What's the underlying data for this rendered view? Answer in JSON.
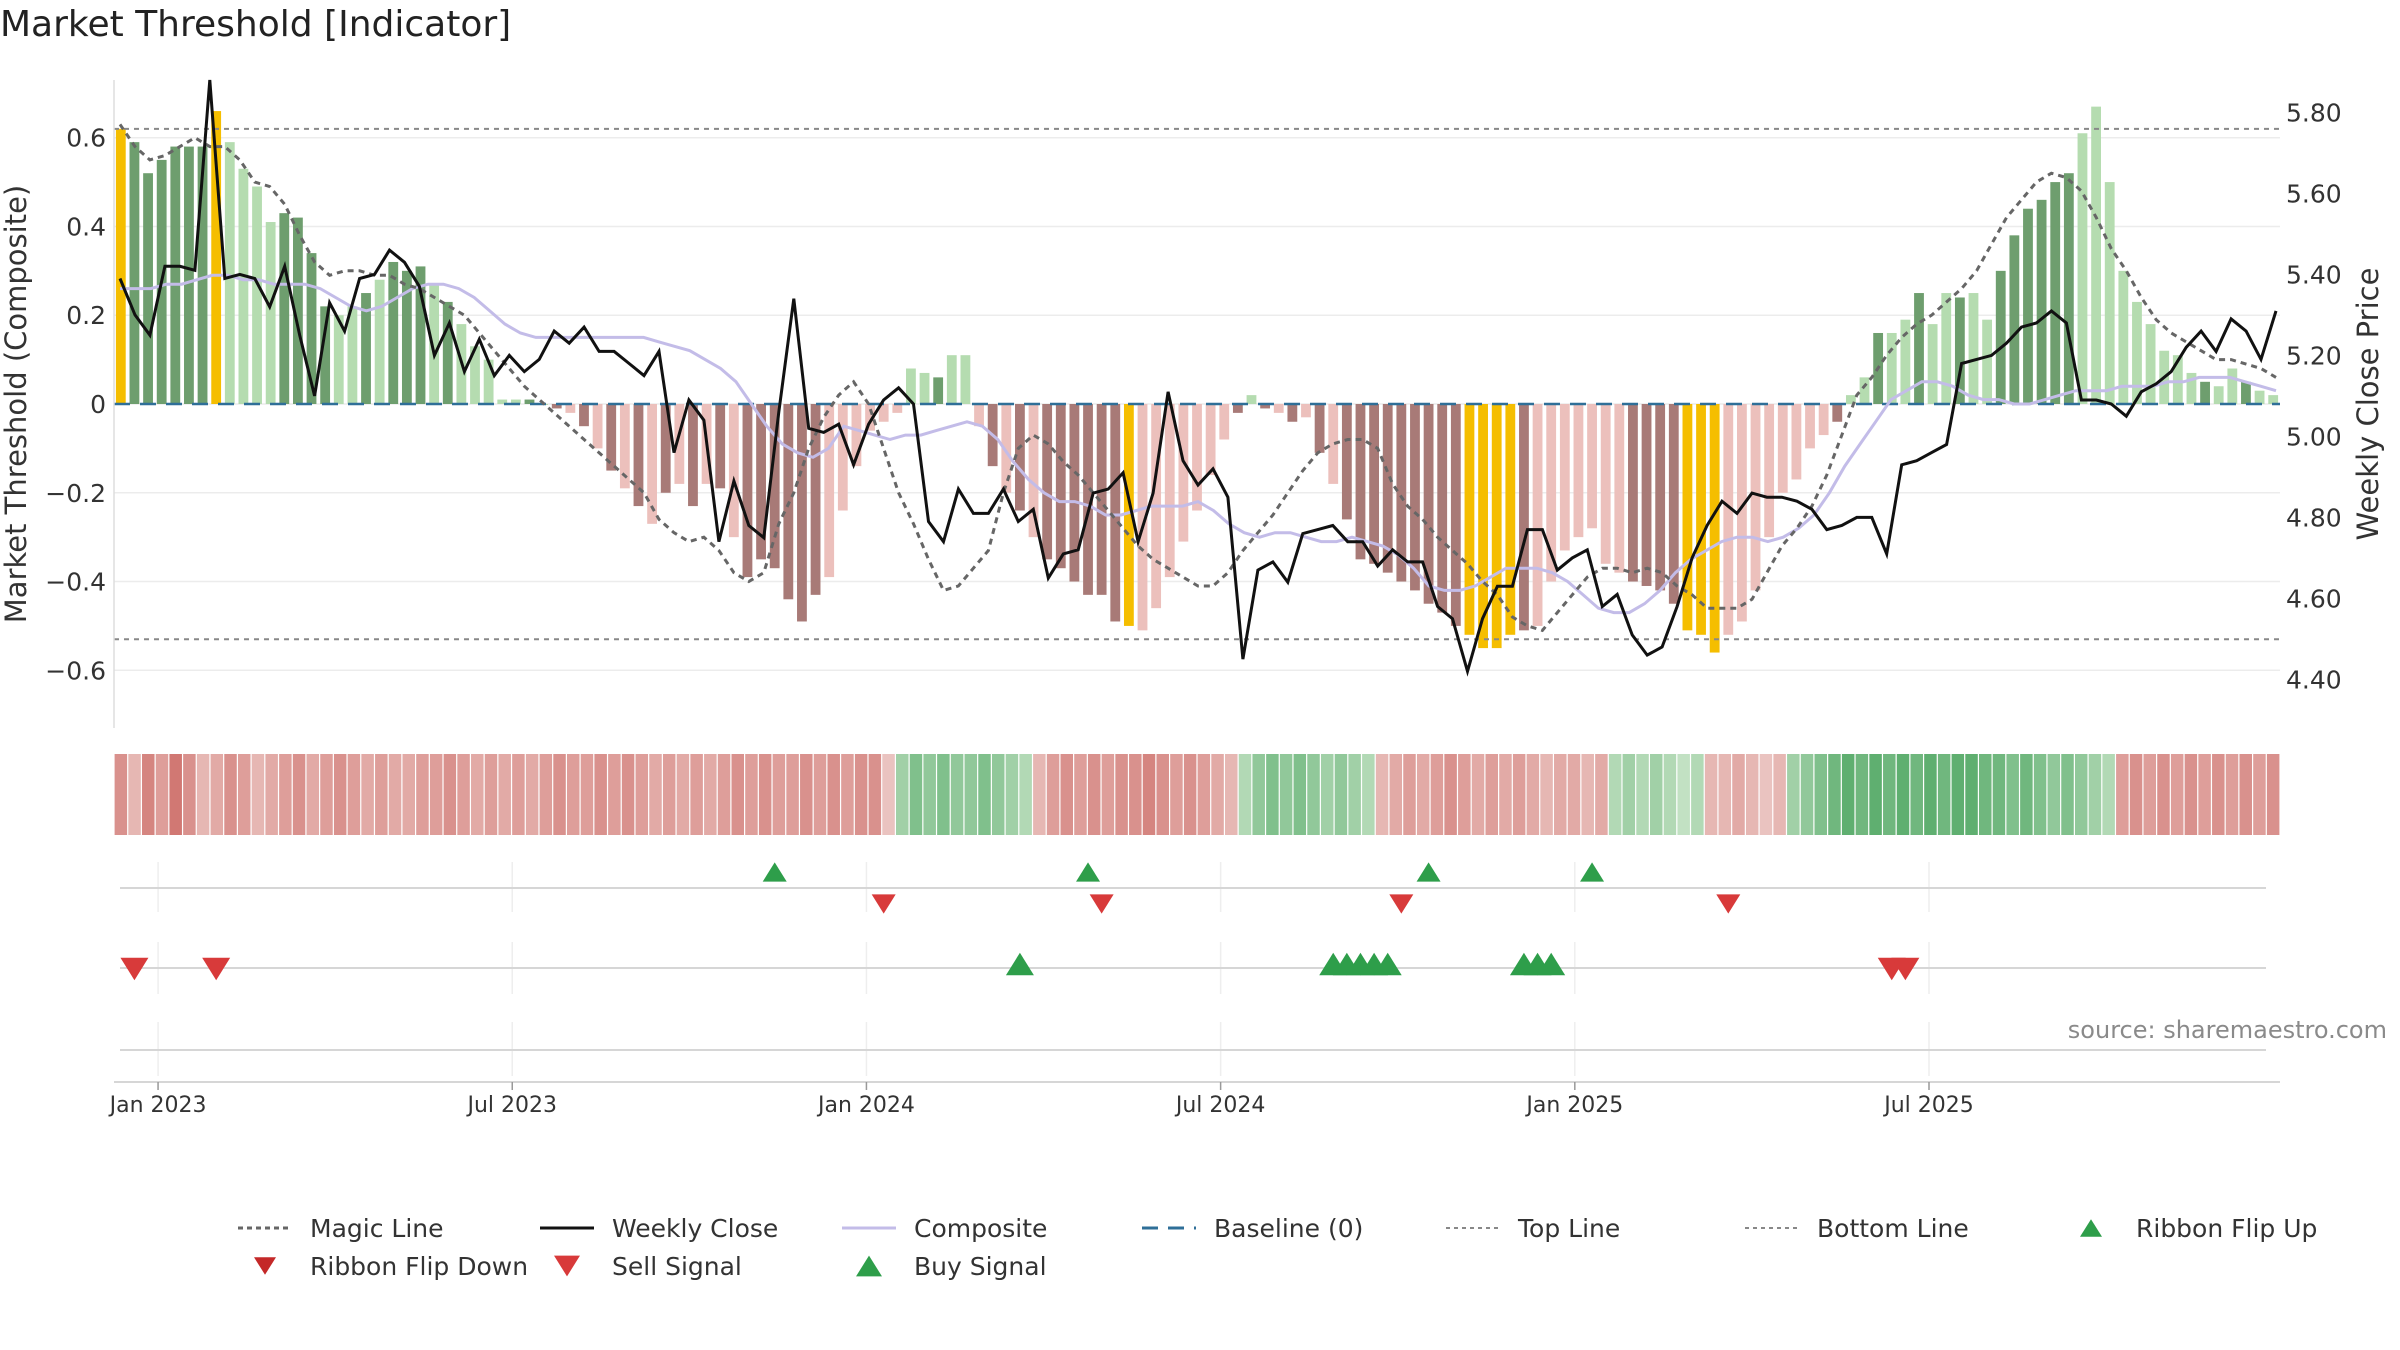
{
  "chart_data": {
    "type": "bar",
    "title": "Market Threshold [Indicator]",
    "source": "source: sharemaestro.com",
    "ylabel_left": "Market Threshold (Composite)",
    "ylabel_right": "Weekly Close Price",
    "ylim_left": [
      -0.73,
      0.73
    ],
    "ylim_right": [
      4.28,
      5.88
    ],
    "left_ticks": [
      {
        "v": 0.6,
        "label": "0.6"
      },
      {
        "v": 0.4,
        "label": "0.4"
      },
      {
        "v": 0.2,
        "label": "0.2"
      },
      {
        "v": 0,
        "label": "0"
      },
      {
        "v": -0.2,
        "label": "−0.2"
      },
      {
        "v": -0.4,
        "label": "−0.4"
      },
      {
        "v": -0.6,
        "label": "−0.6"
      }
    ],
    "right_ticks": [
      {
        "v": 5.8,
        "label": "5.80"
      },
      {
        "v": 5.6,
        "label": "5.60"
      },
      {
        "v": 5.4,
        "label": "5.40"
      },
      {
        "v": 5.2,
        "label": "5.20"
      },
      {
        "v": 5.0,
        "label": "5.00"
      },
      {
        "v": 4.8,
        "label": "4.80"
      },
      {
        "v": 4.6,
        "label": "4.60"
      },
      {
        "v": 4.4,
        "label": "4.40"
      }
    ],
    "x_ticks": [
      {
        "week": 3,
        "label": "Jan 2023"
      },
      {
        "week": 29,
        "label": "Jul 2023"
      },
      {
        "week": 55,
        "label": "Jan 2024"
      },
      {
        "week": 81,
        "label": "Jul 2024"
      },
      {
        "week": 107,
        "label": "Jan 2025"
      },
      {
        "week": 133,
        "label": "Jul 2025"
      }
    ],
    "top_line": 0.62,
    "bottom_line": -0.53,
    "composite_bars": [
      0.62,
      0.59,
      0.52,
      0.55,
      0.58,
      0.58,
      0.58,
      0.66,
      0.59,
      0.53,
      0.49,
      0.41,
      0.43,
      0.42,
      0.34,
      0.22,
      0.2,
      0.22,
      0.25,
      0.28,
      0.32,
      0.3,
      0.31,
      0.27,
      0.23,
      0.18,
      0.13,
      0.1,
      0.01,
      0.01,
      0.01,
      0.0,
      -0.01,
      -0.02,
      -0.05,
      -0.1,
      -0.15,
      -0.19,
      -0.23,
      -0.27,
      -0.2,
      -0.18,
      -0.23,
      -0.18,
      -0.19,
      -0.3,
      -0.39,
      -0.35,
      -0.37,
      -0.44,
      -0.49,
      -0.43,
      -0.39,
      -0.24,
      -0.14,
      -0.06,
      -0.04,
      -0.02,
      0.08,
      0.07,
      0.06,
      0.11,
      0.11,
      -0.05,
      -0.14,
      -0.2,
      -0.24,
      -0.3,
      -0.35,
      -0.37,
      -0.4,
      -0.43,
      -0.43,
      -0.49,
      -0.5,
      -0.51,
      -0.46,
      -0.39,
      -0.31,
      -0.24,
      -0.16,
      -0.08,
      -0.02,
      0.02,
      -0.01,
      -0.02,
      -0.04,
      -0.03,
      -0.11,
      -0.18,
      -0.26,
      -0.35,
      -0.36,
      -0.38,
      -0.4,
      -0.42,
      -0.45,
      -0.47,
      -0.5,
      -0.52,
      -0.55,
      -0.55,
      -0.52,
      -0.51,
      -0.5,
      -0.4,
      -0.33,
      -0.3,
      -0.28,
      -0.36,
      -0.38,
      -0.4,
      -0.41,
      -0.42,
      -0.45,
      -0.51,
      -0.52,
      -0.56,
      -0.52,
      -0.49,
      -0.42,
      -0.3,
      -0.2,
      -0.17,
      -0.1,
      -0.07,
      -0.04,
      0.02,
      0.06,
      0.16,
      0.16,
      0.19,
      0.25,
      0.18,
      0.25,
      0.24,
      0.25,
      0.19,
      0.3,
      0.38,
      0.44,
      0.46,
      0.5,
      0.52,
      0.61,
      0.67,
      0.5,
      0.3,
      0.23,
      0.18,
      0.12,
      0.11,
      0.07,
      0.05,
      0.04,
      0.08,
      0.05,
      0.03,
      0.02
    ],
    "ribbon_values": [
      -0.6,
      -0.3,
      -0.7,
      -0.5,
      -0.8,
      -0.6,
      -0.3,
      -0.4,
      -0.6,
      -0.5,
      -0.3,
      -0.4,
      -0.5,
      -0.6,
      -0.4,
      -0.5,
      -0.6,
      -0.5,
      -0.4,
      -0.5,
      -0.4,
      -0.4,
      -0.5,
      -0.5,
      -0.6,
      -0.5,
      -0.4,
      -0.5,
      -0.4,
      -0.5,
      -0.4,
      -0.5,
      -0.6,
      -0.5,
      -0.5,
      -0.6,
      -0.5,
      -0.6,
      -0.5,
      -0.4,
      -0.5,
      -0.4,
      -0.5,
      -0.4,
      -0.5,
      -0.6,
      -0.5,
      -0.6,
      -0.5,
      -0.5,
      -0.6,
      -0.5,
      -0.6,
      -0.5,
      -0.6,
      -0.6,
      -0.2,
      0.4,
      0.6,
      0.5,
      0.6,
      0.5,
      0.5,
      0.6,
      0.5,
      0.4,
      0.3,
      -0.3,
      -0.5,
      -0.6,
      -0.5,
      -0.6,
      -0.5,
      -0.6,
      -0.6,
      -0.7,
      -0.6,
      -0.5,
      -0.6,
      -0.5,
      -0.4,
      -0.3,
      0.3,
      0.5,
      0.6,
      0.5,
      0.6,
      0.5,
      0.4,
      0.5,
      0.4,
      0.3,
      -0.3,
      -0.4,
      -0.5,
      -0.4,
      -0.5,
      -0.6,
      -0.5,
      -0.4,
      -0.5,
      -0.4,
      -0.5,
      -0.4,
      -0.3,
      -0.4,
      -0.4,
      -0.3,
      -0.4,
      0.3,
      0.4,
      0.3,
      0.4,
      0.3,
      0.2,
      0.3,
      -0.3,
      -0.3,
      -0.4,
      -0.3,
      -0.2,
      -0.3,
      0.4,
      0.5,
      0.6,
      0.7,
      0.8,
      0.7,
      0.8,
      0.7,
      0.8,
      0.7,
      0.8,
      0.7,
      0.8,
      0.8,
      0.7,
      0.7,
      0.6,
      0.7,
      0.6,
      0.5,
      0.6,
      0.5,
      0.4,
      0.3,
      -0.5,
      -0.6,
      -0.5,
      -0.6,
      -0.5,
      -0.6,
      -0.5,
      -0.6,
      -0.5,
      -0.6,
      -0.5,
      -0.6
    ],
    "weekly_close": [
      5.39,
      5.3,
      5.25,
      5.42,
      5.42,
      5.41,
      5.88,
      5.39,
      5.4,
      5.39,
      5.32,
      5.42,
      5.25,
      5.1,
      5.33,
      5.26,
      5.39,
      5.4,
      5.46,
      5.43,
      5.37,
      5.2,
      5.28,
      5.16,
      5.24,
      5.15,
      5.2,
      5.16,
      5.19,
      5.26,
      5.23,
      5.27,
      5.21,
      5.21,
      5.18,
      5.15,
      5.21,
      4.96,
      5.09,
      5.04,
      4.74,
      4.89,
      4.78,
      4.75,
      5.06,
      5.34,
      5.02,
      5.01,
      5.03,
      4.93,
      5.03,
      5.09,
      5.12,
      5.08,
      4.79,
      4.74,
      4.87,
      4.81,
      4.81,
      4.87,
      4.79,
      4.82,
      4.65,
      4.71,
      4.72,
      4.86,
      4.87,
      4.91,
      4.74,
      4.86,
      5.11,
      4.94,
      4.88,
      4.92,
      4.85,
      4.45,
      4.67,
      4.69,
      4.64,
      4.76,
      4.77,
      4.78,
      4.74,
      4.74,
      4.68,
      4.72,
      4.69,
      4.69,
      4.58,
      4.55,
      4.42,
      4.55,
      4.63,
      4.63,
      4.77,
      4.77,
      4.67,
      4.7,
      4.72,
      4.58,
      4.61,
      4.51,
      4.46,
      4.48,
      4.58,
      4.7,
      4.78,
      4.84,
      4.81,
      4.86,
      4.85,
      4.85,
      4.84,
      4.82,
      4.77,
      4.78,
      4.8,
      4.8,
      4.71,
      4.93,
      4.94,
      4.96,
      4.98,
      5.18,
      5.19,
      5.2,
      5.23,
      5.27,
      5.28,
      5.31,
      5.28,
      5.09,
      5.09,
      5.08,
      5.05,
      5.11,
      5.13,
      5.16,
      5.22,
      5.26,
      5.21,
      5.29,
      5.26,
      5.19,
      5.31
    ],
    "composite_line": [
      0.26,
      0.26,
      0.26,
      0.27,
      0.27,
      0.28,
      0.29,
      0.29,
      0.28,
      0.28,
      0.27,
      0.27,
      0.27,
      0.26,
      0.24,
      0.22,
      0.21,
      0.22,
      0.24,
      0.26,
      0.27,
      0.27,
      0.26,
      0.24,
      0.21,
      0.18,
      0.16,
      0.15,
      0.15,
      0.15,
      0.15,
      0.15,
      0.15,
      0.15,
      0.15,
      0.14,
      0.13,
      0.12,
      0.1,
      0.08,
      0.05,
      0.0,
      -0.05,
      -0.09,
      -0.11,
      -0.12,
      -0.1,
      -0.05,
      -0.06,
      -0.07,
      -0.08,
      -0.07,
      -0.07,
      -0.06,
      -0.05,
      -0.04,
      -0.05,
      -0.08,
      -0.13,
      -0.17,
      -0.2,
      -0.22,
      -0.22,
      -0.23,
      -0.25,
      -0.25,
      -0.24,
      -0.23,
      -0.23,
      -0.23,
      -0.22,
      -0.24,
      -0.27,
      -0.29,
      -0.3,
      -0.29,
      -0.29,
      -0.3,
      -0.31,
      -0.31,
      -0.3,
      -0.31,
      -0.32,
      -0.34,
      -0.37,
      -0.41,
      -0.42,
      -0.42,
      -0.41,
      -0.39,
      -0.37,
      -0.37,
      -0.37,
      -0.38,
      -0.4,
      -0.43,
      -0.46,
      -0.47,
      -0.47,
      -0.45,
      -0.42,
      -0.38,
      -0.35,
      -0.33,
      -0.31,
      -0.3,
      -0.3,
      -0.31,
      -0.3,
      -0.28,
      -0.25,
      -0.2,
      -0.14,
      -0.09,
      -0.04,
      0.01,
      0.03,
      0.05,
      0.05,
      0.04,
      0.02,
      0.01,
      0.01,
      0.0,
      0.0,
      0.01,
      0.02,
      0.03,
      0.03,
      0.03,
      0.04,
      0.04,
      0.04,
      0.05,
      0.05,
      0.06,
      0.06,
      0.06,
      0.05,
      0.04,
      0.03
    ],
    "magic_line": [
      0.63,
      0.58,
      0.55,
      0.56,
      0.58,
      0.6,
      0.58,
      0.58,
      0.55,
      0.5,
      0.49,
      0.45,
      0.38,
      0.32,
      0.29,
      0.3,
      0.3,
      0.29,
      0.29,
      0.27,
      0.26,
      0.24,
      0.22,
      0.2,
      0.16,
      0.12,
      0.08,
      0.04,
      0.01,
      -0.02,
      -0.05,
      -0.08,
      -0.11,
      -0.14,
      -0.17,
      -0.2,
      -0.26,
      -0.29,
      -0.31,
      -0.3,
      -0.33,
      -0.38,
      -0.4,
      -0.38,
      -0.27,
      -0.2,
      -0.1,
      -0.03,
      0.02,
      0.05,
      0.0,
      -0.1,
      -0.2,
      -0.27,
      -0.35,
      -0.42,
      -0.41,
      -0.37,
      -0.33,
      -0.2,
      -0.1,
      -0.07,
      -0.09,
      -0.13,
      -0.16,
      -0.2,
      -0.24,
      -0.28,
      -0.32,
      -0.35,
      -0.37,
      -0.39,
      -0.41,
      -0.41,
      -0.38,
      -0.33,
      -0.29,
      -0.25,
      -0.2,
      -0.15,
      -0.11,
      -0.09,
      -0.08,
      -0.08,
      -0.1,
      -0.18,
      -0.23,
      -0.26,
      -0.3,
      -0.33,
      -0.36,
      -0.4,
      -0.43,
      -0.48,
      -0.5,
      -0.51,
      -0.47,
      -0.43,
      -0.39,
      -0.37,
      -0.37,
      -0.38,
      -0.37,
      -0.38,
      -0.41,
      -0.43,
      -0.46,
      -0.46,
      -0.46,
      -0.44,
      -0.38,
      -0.32,
      -0.28,
      -0.23,
      -0.16,
      -0.07,
      0.02,
      0.06,
      0.11,
      0.15,
      0.18,
      0.2,
      0.23,
      0.26,
      0.3,
      0.36,
      0.42,
      0.46,
      0.5,
      0.52,
      0.51,
      0.48,
      0.42,
      0.35,
      0.3,
      0.24,
      0.19,
      0.16,
      0.14,
      0.12,
      0.1,
      0.1,
      0.09,
      0.08,
      0.06
    ],
    "sell_signals": [
      56,
      72,
      94,
      118
    ],
    "buy_signals": [
      48,
      71,
      96,
      108
    ],
    "ribbon_flip_up": [
      66,
      89,
      90,
      91,
      92,
      93,
      103,
      104,
      105
    ],
    "ribbon_flip_down": [
      1,
      7,
      130,
      131
    ],
    "colors": {
      "gold": "#f5be00",
      "strong_green": "#6e9e6e",
      "light_green": "#b5dcb0",
      "strong_red": "#a87a77",
      "light_red": "#ecc0bc",
      "magic_line": "#666666",
      "close_line": "#111111",
      "composite_line": "#c3bce8",
      "baseline": "#2f6f98",
      "threshold_line": "#888888",
      "buy_marker": "#2e9e4a",
      "sell_marker": "#d83a3a",
      "ribbon_flip_down_marker": "#c42828"
    },
    "legend": [
      {
        "key": "magic",
        "label": "Magic Line"
      },
      {
        "key": "close",
        "label": "Weekly Close"
      },
      {
        "key": "composite",
        "label": "Composite"
      },
      {
        "key": "baseline",
        "label": "Baseline (0)"
      },
      {
        "key": "top",
        "label": "Top Line"
      },
      {
        "key": "bottom",
        "label": "Bottom Line"
      },
      {
        "key": "flip_up",
        "label": "Ribbon Flip Up"
      },
      {
        "key": "flip_down",
        "label": "Ribbon Flip Down"
      },
      {
        "key": "sell",
        "label": "Sell Signal"
      },
      {
        "key": "buy",
        "label": "Buy Signal"
      }
    ]
  }
}
